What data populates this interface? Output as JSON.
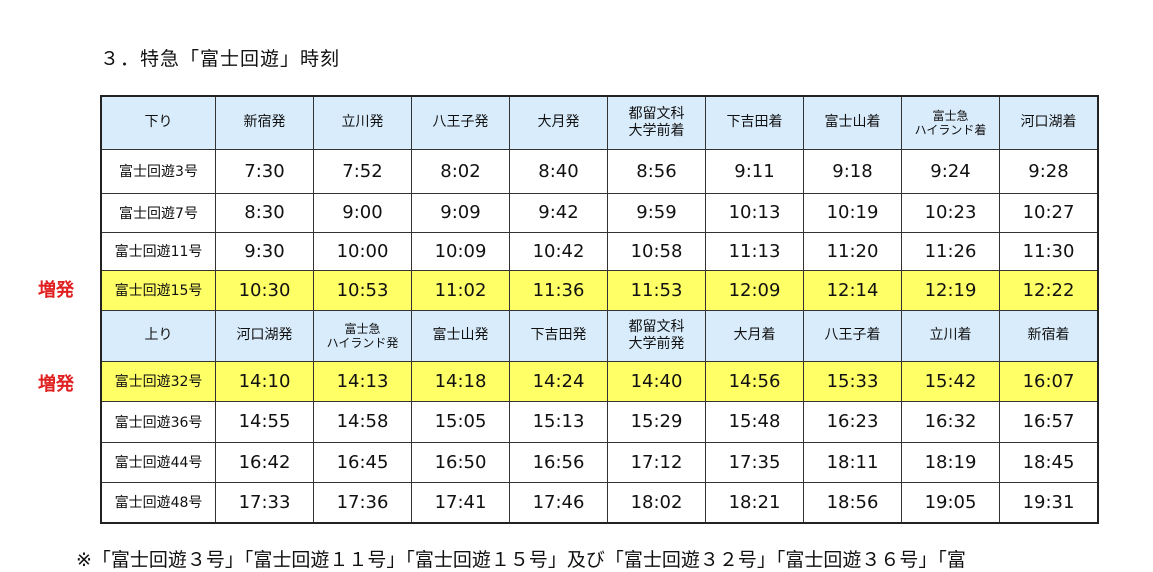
{
  "title": "３．特急「富士回遊」時刻",
  "extra_label": "増発",
  "down": {
    "header": [
      "下り",
      "新宿発",
      "立川発",
      "八王子発",
      "大月発",
      "都留文科\n大学前着",
      "下吉田着",
      "富士山着",
      "富士急\nハイランド着",
      "河口湖着"
    ],
    "rows": [
      {
        "name": "富士回遊3号",
        "times": [
          "7:30",
          "7:52",
          "8:02",
          "8:40",
          "8:56",
          "9:11",
          "9:18",
          "9:24",
          "9:28"
        ],
        "extra": false
      },
      {
        "name": "富士回遊7号",
        "times": [
          "8:30",
          "9:00",
          "9:09",
          "9:42",
          "9:59",
          "10:13",
          "10:19",
          "10:23",
          "10:27"
        ],
        "extra": false
      },
      {
        "name": "富士回遊11号",
        "times": [
          "9:30",
          "10:00",
          "10:09",
          "10:42",
          "10:58",
          "11:13",
          "11:20",
          "11:26",
          "11:30"
        ],
        "extra": false
      },
      {
        "name": "富士回遊15号",
        "times": [
          "10:30",
          "10:53",
          "11:02",
          "11:36",
          "11:53",
          "12:09",
          "12:14",
          "12:19",
          "12:22"
        ],
        "extra": true
      }
    ]
  },
  "up": {
    "header": [
      "上り",
      "河口湖発",
      "富士急\nハイランド発",
      "富士山発",
      "下吉田発",
      "都留文科\n大学前発",
      "大月着",
      "八王子着",
      "立川着",
      "新宿着"
    ],
    "rows": [
      {
        "name": "富士回遊32号",
        "times": [
          "14:10",
          "14:13",
          "14:18",
          "14:24",
          "14:40",
          "14:56",
          "15:33",
          "15:42",
          "16:07"
        ],
        "extra": true
      },
      {
        "name": "富士回遊36号",
        "times": [
          "14:55",
          "14:58",
          "15:05",
          "15:13",
          "15:29",
          "15:48",
          "16:23",
          "16:32",
          "16:57"
        ],
        "extra": false
      },
      {
        "name": "富士回遊44号",
        "times": [
          "16:42",
          "16:45",
          "16:50",
          "16:56",
          "17:12",
          "17:35",
          "18:11",
          "18:19",
          "18:45"
        ],
        "extra": false
      },
      {
        "name": "富士回遊48号",
        "times": [
          "17:33",
          "17:36",
          "17:41",
          "17:46",
          "18:02",
          "18:21",
          "18:56",
          "19:05",
          "19:31"
        ],
        "extra": false
      }
    ]
  },
  "note": "※「富士回遊３号」「富士回遊１１号」「富士回遊１５号」及び「富士回遊３２号」「富士回遊３６号」「富"
}
